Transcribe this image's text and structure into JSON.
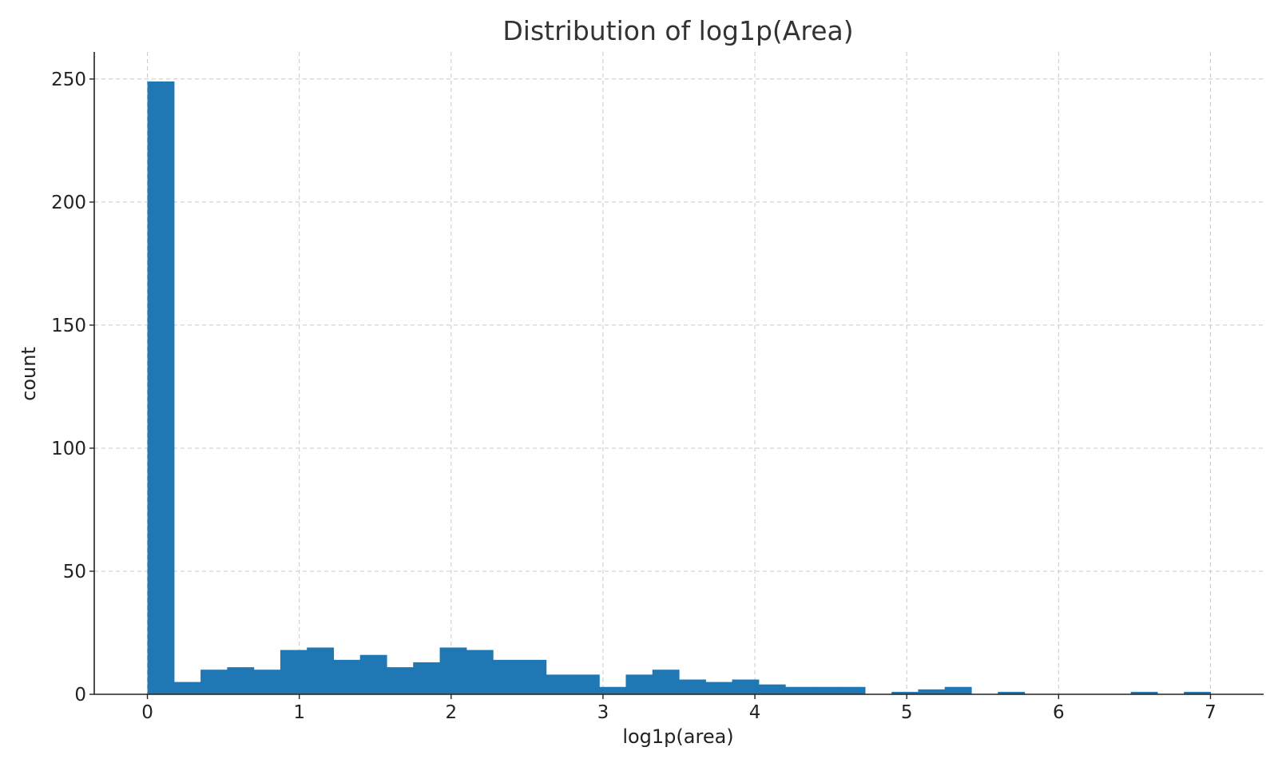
{
  "chart_data": {
    "type": "bar",
    "title": "Distribution of log1p(Area)",
    "xlabel": "log1p(area)",
    "ylabel": "count",
    "xlim": [
      -0.35,
      7.35
    ],
    "ylim": [
      0,
      261
    ],
    "x_ticks": [
      0,
      1,
      2,
      3,
      4,
      5,
      6,
      7
    ],
    "y_ticks": [
      0,
      50,
      100,
      150,
      200,
      250
    ],
    "grid": true,
    "bar_color": "#1f77b4",
    "bin_width": 0.175,
    "bin_edges_start": 0,
    "values": [
      249,
      5,
      10,
      11,
      10,
      18,
      19,
      14,
      16,
      11,
      13,
      19,
      18,
      14,
      14,
      8,
      8,
      3,
      8,
      10,
      6,
      5,
      6,
      4,
      3,
      3,
      3,
      0,
      1,
      2,
      3,
      0,
      1,
      0,
      0,
      0,
      0,
      1,
      0,
      1
    ]
  }
}
